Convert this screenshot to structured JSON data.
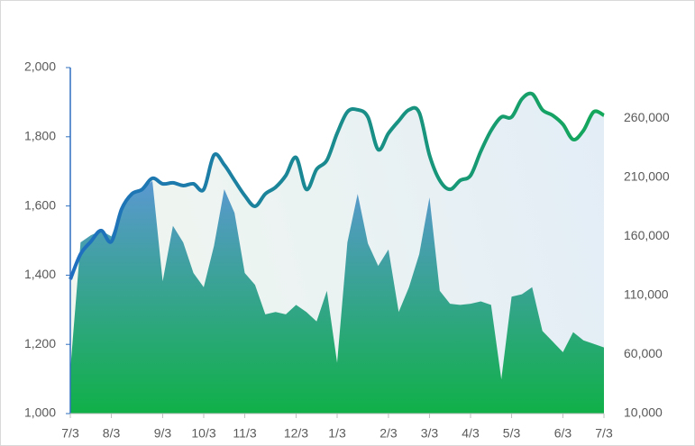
{
  "chart_data": {
    "type": "area",
    "categories": [
      "7/3",
      null,
      null,
      null,
      "8/3",
      null,
      null,
      null,
      null,
      "9/3",
      null,
      null,
      null,
      "10/3",
      null,
      null,
      null,
      "11/3",
      null,
      null,
      null,
      null,
      "12/3",
      null,
      null,
      null,
      "1/3",
      null,
      null,
      null,
      null,
      "2/3",
      null,
      null,
      null,
      "3/3",
      null,
      null,
      null,
      "4/3",
      null,
      null,
      null,
      "5/3",
      null,
      null,
      null,
      null,
      "6/3",
      null,
      null,
      null,
      "7/3"
    ],
    "series": [
      {
        "type": "line",
        "axis": "y",
        "colors": [
          "#1f6fc0",
          "#14a85a"
        ],
        "values": [
          1388,
          1461,
          1497,
          1529,
          1497,
          1591,
          1635,
          1648,
          1680,
          1664,
          1667,
          1659,
          1664,
          1648,
          1747,
          1719,
          1674,
          1630,
          1599,
          1635,
          1654,
          1688,
          1740,
          1648,
          1706,
          1732,
          1810,
          1872,
          1878,
          1857,
          1763,
          1810,
          1846,
          1878,
          1870,
          1747,
          1674,
          1648,
          1674,
          1688,
          1758,
          1818,
          1857,
          1857,
          1909,
          1924,
          1878,
          1862,
          1836,
          1792,
          1818,
          1872,
          1862
        ]
      },
      {
        "type": "area",
        "axis": "y2",
        "colors": [
          "#5b98d2",
          "#10b048"
        ],
        "values": [
          47000,
          155000,
          161000,
          165000,
          160000,
          183000,
          196000,
          200000,
          207000,
          122000,
          169000,
          155000,
          129000,
          117000,
          152000,
          200000,
          180000,
          129000,
          119000,
          94000,
          96000,
          94000,
          102000,
          96000,
          88000,
          114000,
          53000,
          155000,
          196000,
          154000,
          135000,
          149000,
          96000,
          117000,
          145000,
          193000,
          114000,
          103000,
          102000,
          103000,
          105000,
          102000,
          39000,
          109000,
          111000,
          117000,
          80000,
          71000,
          62000,
          79000,
          72000,
          69000,
          66000
        ]
      }
    ],
    "ylim": [
      1000,
      2000
    ],
    "yticks": [
      {
        "value": 1000,
        "label": "1,000"
      },
      {
        "value": 1200,
        "label": "1,200"
      },
      {
        "value": 1400,
        "label": "1,400"
      },
      {
        "value": 1600,
        "label": "1,600"
      },
      {
        "value": 1800,
        "label": "1,800"
      },
      {
        "value": 2000,
        "label": "2,000"
      }
    ],
    "y2lim": [
      10000,
      303000
    ],
    "y2ticks": [
      {
        "value": 10000,
        "label": "10,000"
      },
      {
        "value": 60000,
        "label": "60,000"
      },
      {
        "value": 110000,
        "label": "110,000"
      },
      {
        "value": 160000,
        "label": "160,000"
      },
      {
        "value": 210000,
        "label": "210,000"
      },
      {
        "value": 260000,
        "label": "260,000"
      }
    ],
    "grid": false
  }
}
